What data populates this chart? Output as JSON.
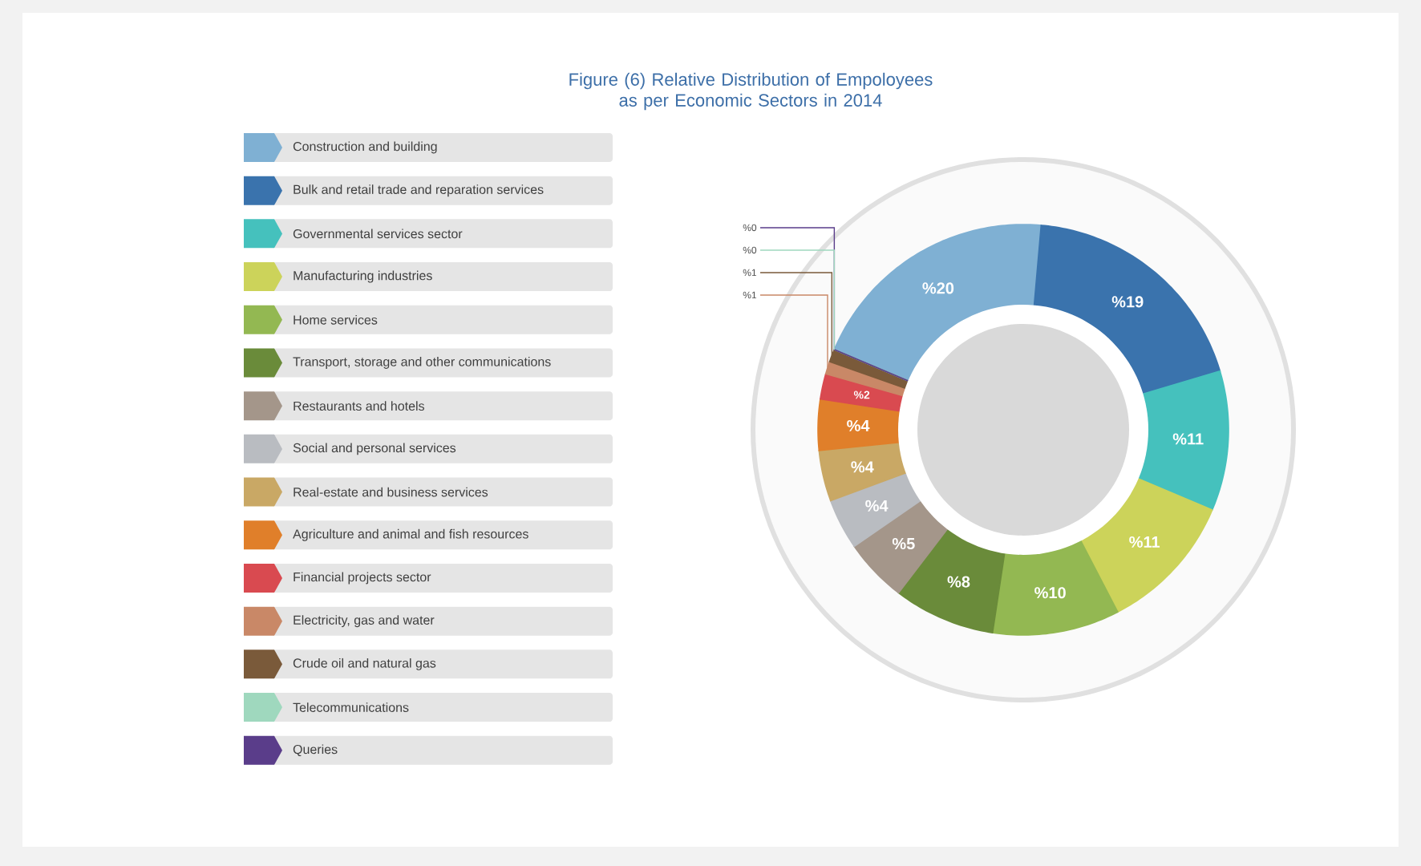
{
  "chart_data": {
    "type": "donut",
    "title": "Figure (6) Relative Distribution of Empoloyees as per Economic Sectors in 2014",
    "categories": [
      "Construction and building",
      "Bulk and retail trade and reparation services",
      "Governmental services sector",
      "Manufacturing industries",
      "Home services",
      "Transport, storage and other communications",
      "Restaurants and hotels",
      "Social and personal services",
      "Real-estate and business services",
      "Agriculture and animal and fish resources",
      "Financial projects sector",
      "Electricity, gas and water",
      "Crude oil and natural gas",
      "Telecommunications",
      "Queries"
    ],
    "values": [
      20,
      19,
      11,
      11,
      10,
      8,
      5,
      4,
      4,
      4,
      2,
      1,
      1,
      0,
      0
    ],
    "value_labels": [
      "%20",
      "%19",
      "%11",
      "%11",
      "%10",
      "%8",
      "%5",
      "%4",
      "%4",
      "%4",
      "%2",
      "%1",
      "%1",
      "%0",
      "%0"
    ],
    "colors": [
      "#7fb0d3",
      "#3a73ad",
      "#45c1bd",
      "#ccd35a",
      "#93b852",
      "#6a8b3a",
      "#a4968a",
      "#b9bcc1",
      "#c9a865",
      "#e07f2a",
      "#d94a50",
      "#c98867",
      "#7a5a3a",
      "#9fd8be",
      "#5a3d8a"
    ],
    "legend": "left"
  }
}
